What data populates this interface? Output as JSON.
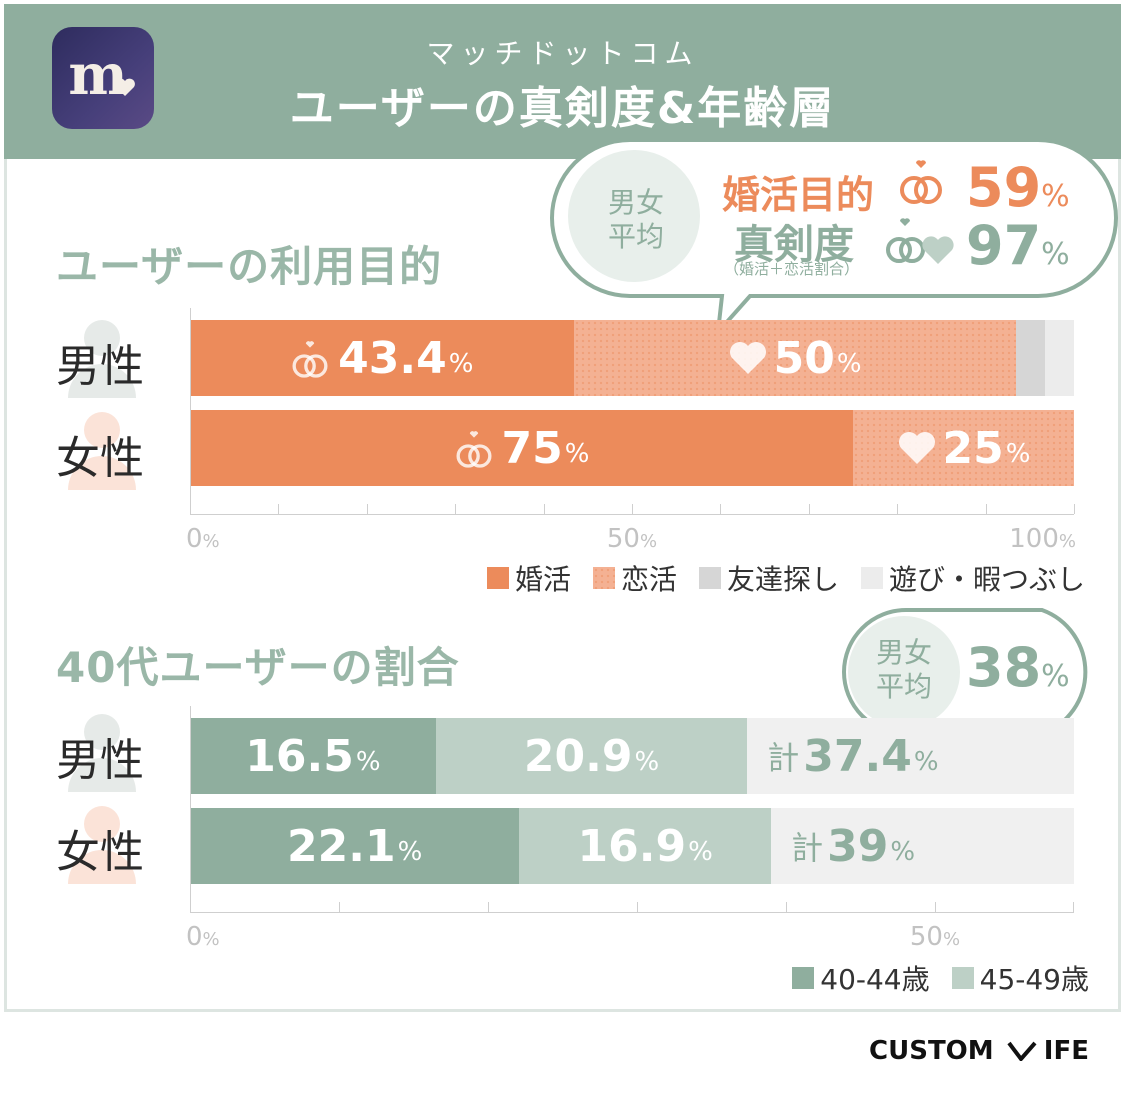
{
  "header": {
    "app_icon_letter": "m",
    "subtitle": "マッチドットコム",
    "title": "ユーザーの真剣度&年齢層"
  },
  "purpose_section": {
    "title": "ユーザーの利用目的",
    "callout": {
      "group_label_line1": "男女",
      "group_label_line2": "平均",
      "konkatsu_label": "婚活目的",
      "konkatsu_value": "59",
      "seriousness_label": "真剣度",
      "seriousness_note": "（婚活＋恋活割合）",
      "seriousness_value": "97",
      "pct_sign": "%"
    }
  },
  "age_section": {
    "title": "40代ユーザーの割合",
    "callout": {
      "group_label_line1": "男女",
      "group_label_line2": "平均",
      "value": "38",
      "pct_sign": "%"
    }
  },
  "rows": {
    "male": "男性",
    "female": "女性"
  },
  "chart_data": [
    {
      "type": "bar",
      "orientation": "horizontal",
      "stacked": true,
      "title": "ユーザーの利用目的",
      "categories": [
        "男性",
        "女性"
      ],
      "series": [
        {
          "name": "婚活",
          "values": [
            43.4,
            75
          ],
          "labels": [
            "43.4",
            "75"
          ],
          "color": "#ec8b5b"
        },
        {
          "name": "恋活",
          "values": [
            50,
            25
          ],
          "labels": [
            "50",
            "25"
          ],
          "color": "#f4b193"
        },
        {
          "name": "友達探し",
          "values": [
            3.3,
            0
          ],
          "color": "#d6d6d6"
        },
        {
          "name": "遊び・暇つぶし",
          "values": [
            3.3,
            0
          ],
          "color": "#ececec"
        }
      ],
      "xlim": [
        0,
        100
      ],
      "tick_labels": [
        {
          "num": "0",
          "unit": "%"
        },
        {
          "num": "50",
          "unit": "%"
        },
        {
          "num": "100",
          "unit": "%"
        }
      ],
      "legend_position": "bottom-right"
    },
    {
      "type": "bar",
      "orientation": "horizontal",
      "stacked": true,
      "title": "40代ユーザーの割合",
      "categories": [
        "男性",
        "女性"
      ],
      "series": [
        {
          "name": "40-44歳",
          "values": [
            16.5,
            22.1
          ],
          "labels": [
            "16.5",
            "22.1"
          ],
          "color": "#8fae9e"
        },
        {
          "name": "45-49歳",
          "values": [
            20.9,
            16.9
          ],
          "labels": [
            "20.9",
            "16.9"
          ],
          "color": "#bdd0c6"
        }
      ],
      "totals_prefix": "計",
      "totals": [
        "37.4",
        "39"
      ],
      "xlim": [
        0,
        60
      ],
      "tick_labels": [
        {
          "num": "0",
          "unit": "%"
        },
        {
          "num": "50",
          "unit": "%"
        }
      ],
      "legend_position": "bottom-right"
    }
  ],
  "footer": {
    "logo_left": "CUSTOM",
    "logo_right": "IFE"
  },
  "colors": {
    "header": "#8fae9e",
    "konkatsu": "#ec8b5b",
    "renkatsu": "#f4b193",
    "accent_green": "#8fae9e"
  }
}
